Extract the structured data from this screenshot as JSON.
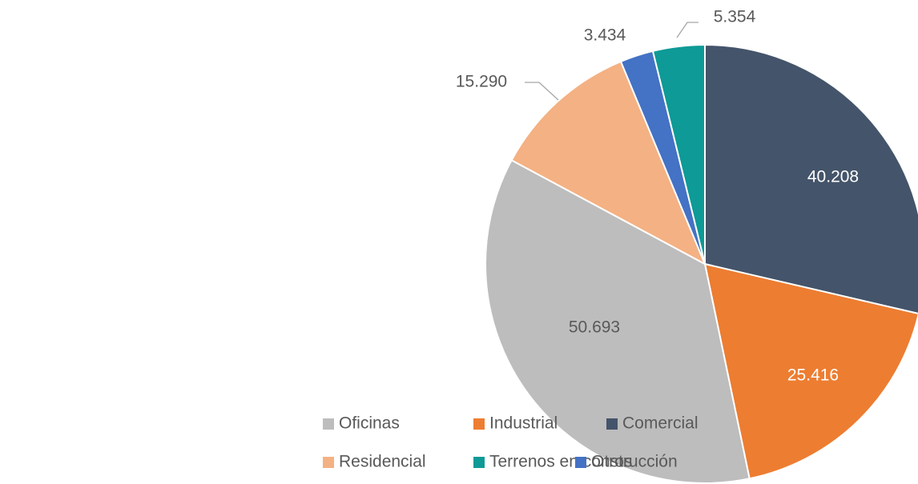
{
  "chart_data": {
    "type": "pie",
    "categories": [
      "Comercial",
      "Industrial",
      "Oficinas",
      "Residencial",
      "Otros",
      "Terrenos en construcción"
    ],
    "values": [
      40208,
      25416,
      50693,
      15290,
      3434,
      5354
    ],
    "value_labels": [
      "40.208",
      "25.416",
      "50.693",
      "15.290",
      "3.434",
      "5.354"
    ],
    "colors": [
      "#44546a",
      "#ed7d31",
      "#bdbdbd",
      "#f4b183",
      "#4472c4",
      "#0e9a96"
    ],
    "legend": "bottom-left"
  }
}
